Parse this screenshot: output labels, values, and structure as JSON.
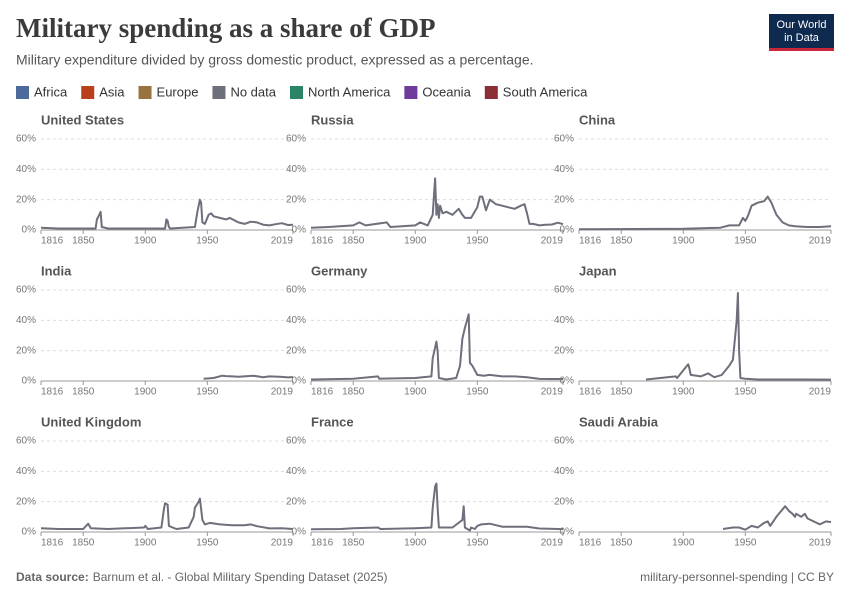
{
  "header": {
    "title": "Military spending as a share of GDP",
    "subtitle": "Military expenditure divided by gross domestic product, expressed as a percentage.",
    "logo": [
      "Our World",
      "in Data"
    ]
  },
  "legend": [
    {
      "name": "Africa",
      "color": "#4c6a9c"
    },
    {
      "name": "Asia",
      "color": "#b8401b"
    },
    {
      "name": "Europe",
      "color": "#98723f"
    },
    {
      "name": "No data",
      "color": "#6d6f7b"
    },
    {
      "name": "North America",
      "color": "#2b8465"
    },
    {
      "name": "Oceania",
      "color": "#6e3b9c"
    },
    {
      "name": "South America",
      "color": "#8a2f35"
    }
  ],
  "footer": {
    "source_label": "Data source:",
    "source": "Barnum et al. - Global Military Spending Dataset (2025)",
    "right": "military-personnel-spending | CC BY"
  },
  "chart_data": [
    {
      "type": "line",
      "title": "United States",
      "color": "#6d6f7b",
      "xlim": [
        1816,
        2019
      ],
      "xticks": [
        1816,
        1850,
        1900,
        1950,
        2019
      ],
      "ylim": [
        0,
        60
      ],
      "yticks": [
        {
          "value": 0,
          "label": "0%"
        },
        {
          "value": 20,
          "label": "20%"
        },
        {
          "value": 40,
          "label": "40%"
        },
        {
          "value": 60,
          "label": "60%"
        }
      ],
      "grid": true,
      "x": [
        1816,
        1830,
        1860,
        1861,
        1863,
        1864,
        1865,
        1870,
        1900,
        1916,
        1917,
        1918,
        1919,
        1920,
        1940,
        1942,
        1944,
        1945,
        1946,
        1948,
        1951,
        1953,
        1955,
        1960,
        1965,
        1968,
        1975,
        1980,
        1985,
        1990,
        1995,
        2000,
        2005,
        2010,
        2015,
        2019
      ],
      "values": [
        1.5,
        1,
        1,
        7,
        10,
        12,
        2,
        1,
        1,
        1,
        7,
        6,
        2,
        1,
        2,
        12,
        20,
        18,
        5,
        4,
        10,
        11,
        9,
        8,
        7,
        8,
        5,
        4,
        5.5,
        5,
        3.5,
        3,
        3.8,
        4.5,
        3.3,
        3.4
      ]
    },
    {
      "type": "line",
      "title": "Russia",
      "color": "#6d6f7b",
      "xlim": [
        1816,
        2019
      ],
      "xticks": [
        1816,
        1850,
        1900,
        1950,
        2019
      ],
      "ylim": [
        0,
        60
      ],
      "yticks": [
        {
          "value": 0,
          "label": "0%"
        },
        {
          "value": 20,
          "label": "20%"
        },
        {
          "value": 40,
          "label": "40%"
        },
        {
          "value": 60,
          "label": "60%"
        }
      ],
      "grid": true,
      "x": [
        1816,
        1830,
        1850,
        1855,
        1860,
        1877,
        1880,
        1900,
        1904,
        1910,
        1914,
        1916,
        1917,
        1918,
        1919,
        1920,
        1922,
        1925,
        1930,
        1935,
        1938,
        1940,
        1945,
        1950,
        1952,
        1954,
        1957,
        1960,
        1965,
        1970,
        1975,
        1980,
        1985,
        1988,
        1990,
        1992,
        1995,
        2000,
        2005,
        2010,
        2015,
        2019
      ],
      "values": [
        1.5,
        2,
        3,
        5,
        3,
        5,
        2,
        3,
        5,
        3,
        10,
        34,
        10,
        17,
        8,
        16,
        11,
        12,
        10,
        14,
        10,
        8,
        8,
        15,
        22,
        22,
        13,
        20,
        17,
        16,
        15,
        14,
        16,
        17,
        11,
        4,
        4,
        3,
        3.5,
        3.6,
        4.8,
        3.8
      ]
    },
    {
      "type": "line",
      "title": "China",
      "color": "#6d6f7b",
      "xlim": [
        1816,
        2019
      ],
      "xticks": [
        1816,
        1850,
        1900,
        1950,
        2019
      ],
      "ylim": [
        0,
        60
      ],
      "yticks": [
        {
          "value": 0,
          "label": "0%"
        },
        {
          "value": 20,
          "label": "20%"
        },
        {
          "value": 40,
          "label": "40%"
        },
        {
          "value": 60,
          "label": "60%"
        }
      ],
      "grid": true,
      "x": [
        1816,
        1900,
        1930,
        1937,
        1945,
        1948,
        1950,
        1952,
        1955,
        1960,
        1965,
        1968,
        1971,
        1975,
        1980,
        1985,
        1990,
        2000,
        2010,
        2019
      ],
      "values": [
        0.5,
        0.8,
        1.5,
        3,
        3,
        8,
        6,
        9,
        16,
        18,
        19,
        22,
        18,
        10,
        5,
        3,
        2.5,
        2,
        2,
        2.5
      ]
    },
    {
      "type": "line",
      "title": "India",
      "color": "#6d6f7b",
      "xlim": [
        1816,
        2019
      ],
      "xticks": [
        1816,
        1850,
        1900,
        1950,
        2019
      ],
      "ylim": [
        0,
        60
      ],
      "yticks": [
        {
          "value": 0,
          "label": "0%"
        },
        {
          "value": 20,
          "label": "20%"
        },
        {
          "value": 40,
          "label": "40%"
        },
        {
          "value": 60,
          "label": "60%"
        }
      ],
      "grid": true,
      "x": [
        1947,
        1955,
        1962,
        1965,
        1970,
        1975,
        1987,
        1995,
        2000,
        2010,
        2015,
        2019
      ],
      "values": [
        1.5,
        2,
        3.5,
        3.2,
        3,
        2.8,
        3.5,
        2.5,
        3,
        2.7,
        2.4,
        2.6
      ]
    },
    {
      "type": "line",
      "title": "Germany",
      "color": "#6d6f7b",
      "xlim": [
        1816,
        2019
      ],
      "xticks": [
        1816,
        1850,
        1900,
        1950,
        2019
      ],
      "ylim": [
        0,
        60
      ],
      "yticks": [
        {
          "value": 0,
          "label": "0%"
        },
        {
          "value": 20,
          "label": "20%"
        },
        {
          "value": 40,
          "label": "40%"
        },
        {
          "value": 60,
          "label": "60%"
        }
      ],
      "grid": true,
      "x": [
        1816,
        1850,
        1870,
        1871,
        1900,
        1913,
        1914,
        1916,
        1917,
        1918,
        1919,
        1925,
        1933,
        1936,
        1938,
        1940,
        1943,
        1944,
        1946,
        1950,
        1955,
        1960,
        1970,
        1980,
        1990,
        2000,
        2010,
        2019
      ],
      "values": [
        1,
        1.5,
        3,
        1.5,
        2,
        3,
        15,
        22,
        26,
        20,
        2,
        1,
        2,
        10,
        28,
        35,
        44,
        12,
        10,
        4,
        3.5,
        4,
        3,
        3,
        2.5,
        1.4,
        1.3,
        1.3
      ]
    },
    {
      "type": "line",
      "title": "Japan",
      "color": "#6d6f7b",
      "xlim": [
        1816,
        2019
      ],
      "xticks": [
        1816,
        1850,
        1900,
        1950,
        2019
      ],
      "ylim": [
        0,
        60
      ],
      "yticks": [
        {
          "value": 0,
          "label": "0%"
        },
        {
          "value": 20,
          "label": "20%"
        },
        {
          "value": 40,
          "label": "40%"
        },
        {
          "value": 60,
          "label": "60%"
        }
      ],
      "grid": true,
      "x": [
        1870,
        1894,
        1895,
        1904,
        1905,
        1906,
        1914,
        1920,
        1925,
        1931,
        1937,
        1940,
        1943,
        1944,
        1945,
        1946,
        1950,
        1960,
        1980,
        2000,
        2019
      ],
      "values": [
        1,
        3,
        2,
        11,
        8,
        4,
        3,
        5,
        2.5,
        4,
        10,
        14,
        40,
        58,
        20,
        2,
        1.5,
        1,
        1,
        1,
        0.9
      ]
    },
    {
      "type": "line",
      "title": "United Kingdom",
      "color": "#6d6f7b",
      "xlim": [
        1816,
        2019
      ],
      "xticks": [
        1816,
        1850,
        1900,
        1950,
        2019
      ],
      "ylim": [
        0,
        60
      ],
      "yticks": [
        {
          "value": 0,
          "label": "0%"
        },
        {
          "value": 20,
          "label": "20%"
        },
        {
          "value": 40,
          "label": "40%"
        },
        {
          "value": 60,
          "label": "60%"
        }
      ],
      "grid": true,
      "x": [
        1816,
        1830,
        1850,
        1854,
        1856,
        1870,
        1899,
        1900,
        1902,
        1913,
        1915,
        1916,
        1918,
        1919,
        1925,
        1935,
        1939,
        1940,
        1943,
        1944,
        1946,
        1948,
        1952,
        1960,
        1970,
        1980,
        1985,
        1990,
        2000,
        2010,
        2019
      ],
      "values": [
        2.5,
        2,
        2,
        5.5,
        2.5,
        2,
        3,
        4,
        2,
        3,
        15,
        19,
        18,
        4,
        2,
        3,
        10,
        16,
        20,
        22,
        8,
        5,
        6,
        5,
        4.5,
        4.5,
        5,
        3.8,
        2.4,
        2.5,
        2
      ]
    },
    {
      "type": "line",
      "title": "France",
      "color": "#6d6f7b",
      "xlim": [
        1816,
        2019
      ],
      "xticks": [
        1816,
        1850,
        1900,
        1950,
        2019
      ],
      "ylim": [
        0,
        60
      ],
      "yticks": [
        {
          "value": 0,
          "label": "0%"
        },
        {
          "value": 20,
          "label": "20%"
        },
        {
          "value": 40,
          "label": "40%"
        },
        {
          "value": 60,
          "label": "60%"
        }
      ],
      "grid": true,
      "x": [
        1816,
        1840,
        1850,
        1870,
        1872,
        1900,
        1913,
        1914,
        1916,
        1917,
        1918,
        1919,
        1930,
        1938,
        1939,
        1940,
        1944,
        1945,
        1948,
        1950,
        1953,
        1960,
        1970,
        1980,
        1990,
        2000,
        2019
      ],
      "values": [
        1.8,
        2,
        2.5,
        3,
        2,
        2.5,
        3,
        16,
        30,
        32,
        16,
        3,
        3,
        8,
        17,
        3,
        1,
        3,
        2,
        4,
        5,
        5.5,
        3.5,
        3.5,
        3.4,
        2.3,
        1.9
      ]
    },
    {
      "type": "line",
      "title": "Saudi Arabia",
      "color": "#6d6f7b",
      "xlim": [
        1816,
        2019
      ],
      "xticks": [
        1816,
        1850,
        1900,
        1950,
        2019
      ],
      "ylim": [
        0,
        60
      ],
      "yticks": [
        {
          "value": 0,
          "label": "0%"
        },
        {
          "value": 20,
          "label": "20%"
        },
        {
          "value": 40,
          "label": "40%"
        },
        {
          "value": 60,
          "label": "60%"
        }
      ],
      "grid": true,
      "x": [
        1932,
        1940,
        1945,
        1950,
        1955,
        1960,
        1965,
        1968,
        1970,
        1975,
        1978,
        1980,
        1982,
        1985,
        1988,
        1990,
        1991,
        1995,
        1998,
        2000,
        2005,
        2010,
        2015,
        2019
      ],
      "values": [
        2,
        3,
        3,
        1.5,
        4,
        3,
        6,
        7,
        4,
        10,
        13,
        15,
        17,
        14,
        12,
        10,
        12,
        10,
        12,
        9,
        7,
        5,
        7,
        6.5
      ]
    }
  ]
}
